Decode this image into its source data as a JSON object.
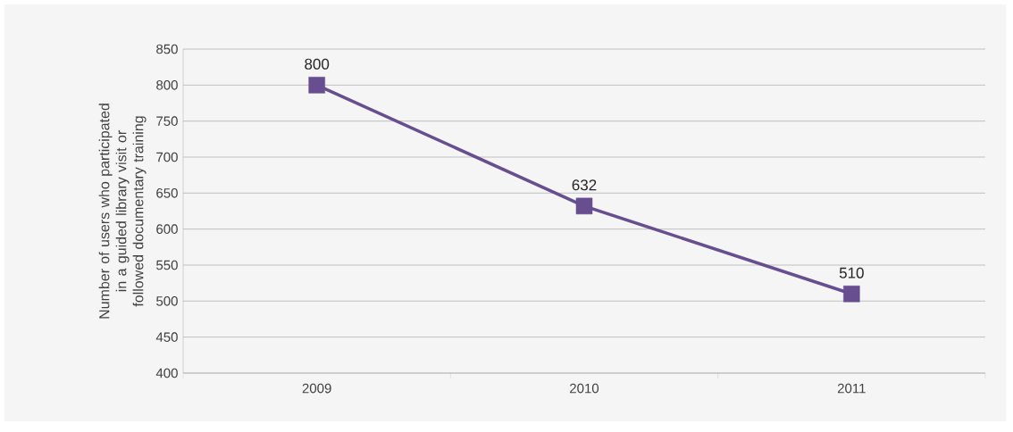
{
  "chart_data": {
    "type": "line",
    "ylabel": "Number of users who participated in a guided library visit or followed documentary training",
    "categories": [
      "2009",
      "2010",
      "2011"
    ],
    "series": [
      {
        "color": "#674e8f",
        "values": [
          800,
          632,
          510
        ]
      }
    ],
    "ylim": [
      400,
      850
    ],
    "yticks": [
      400,
      450,
      500,
      550,
      600,
      650,
      700,
      750,
      800,
      850
    ],
    "grid": "y",
    "marker": "square",
    "line_style": "solid",
    "data_labels": true
  }
}
